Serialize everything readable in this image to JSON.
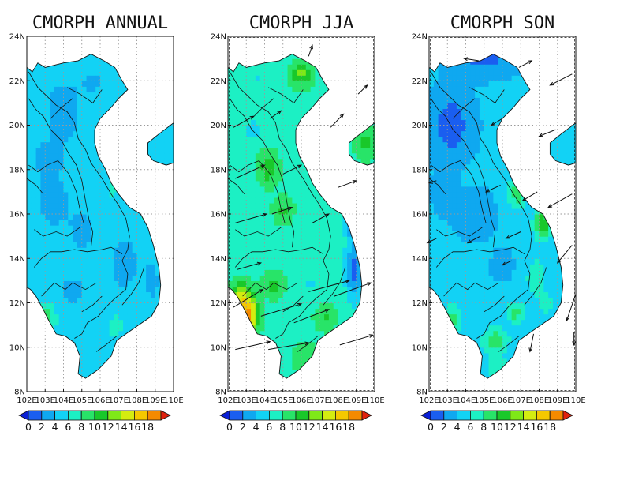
{
  "panels": [
    {
      "title": "CMORPH ANNUAL",
      "variant": "annual",
      "show_vectors": false
    },
    {
      "title": "CMORPH JJA",
      "variant": "jja",
      "show_vectors": true
    },
    {
      "title": "CMORPH SON",
      "variant": "son",
      "show_vectors": true
    }
  ],
  "map": {
    "lon_range": [
      102,
      110
    ],
    "lat_range": [
      8,
      24
    ],
    "lon_ticks": [
      "102E",
      "103E",
      "104E",
      "105E",
      "106E",
      "107E",
      "108E",
      "109E",
      "110E"
    ],
    "lat_ticks": [
      "24N",
      "22N",
      "20N",
      "18N",
      "16N",
      "14N",
      "12N",
      "10N",
      "8N"
    ],
    "gridlines": "dotted"
  },
  "colorbar": {
    "labels": [
      "0",
      "2",
      "4",
      "6",
      "8",
      "10",
      "12",
      "14",
      "16",
      "18"
    ],
    "colors": [
      "#0a1fd6",
      "#1a5ef0",
      "#0fa8f0",
      "#12d2f5",
      "#1cf0c4",
      "#28e468",
      "#19c82a",
      "#7fe818",
      "#d4ec10",
      "#f5c800",
      "#f58a00",
      "#e0220e"
    ]
  }
}
